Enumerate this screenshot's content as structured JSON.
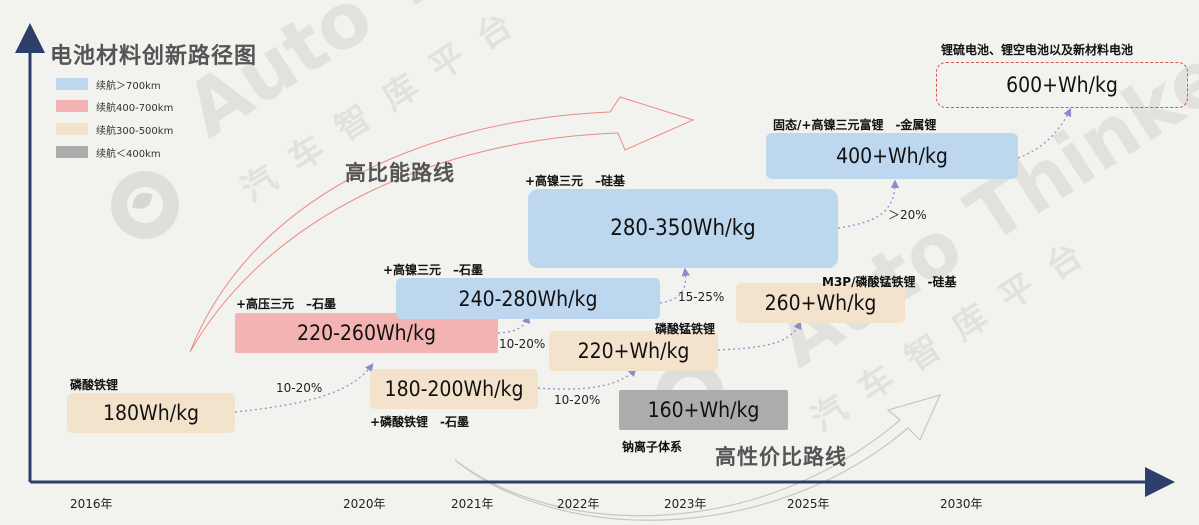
{
  "title": "电池材料创新路径图",
  "colors": {
    "blue": "#bdd7ee",
    "red": "#f4b3b3",
    "beige": "#f4e3cc",
    "gray": "#acacac",
    "axis": "#2e3e6a",
    "arrow": "#8c8cc8"
  },
  "legend": [
    {
      "label": "续航＞700km",
      "color": "#bdd7ee"
    },
    {
      "label": "续航400-700km",
      "color": "#f4b3b3"
    },
    {
      "label": "续航300-500km",
      "color": "#f4e3cc"
    },
    {
      "label": "续航＜400km",
      "color": "#acacac"
    }
  ],
  "years": [
    "2016年",
    "2020年",
    "2021年",
    "2022年",
    "2023年",
    "2025年",
    "2030年"
  ],
  "boxes": {
    "lfp_2016": {
      "value": "180Wh/kg",
      "label": "磷酸铁锂"
    },
    "ncm_2020": {
      "value": "220-260Wh/kg",
      "label": "+高压三元　–石墨"
    },
    "lfp_2021": {
      "value": "180-200Wh/kg",
      "label": "+磷酸铁锂　-石墨"
    },
    "nickel_2021": {
      "value": "240-280Wh/kg",
      "label": "+高镍三元　–石墨"
    },
    "lmfp_2022": {
      "value": "220+Wh/kg",
      "label": "磷酸锰铁锂"
    },
    "nickel_si_2022": {
      "value": "280-350Wh/kg",
      "label": "+高镍三元　–硅基"
    },
    "sodium_2023": {
      "value": "160+Wh/kg",
      "label": "钠离子体系"
    },
    "m3p_2025": {
      "value": "260+Wh/kg",
      "label": "M3P/磷酸锰铁锂　-硅基"
    },
    "solid_2025": {
      "value": "400+Wh/kg",
      "label": "固态/+高镍三元富锂　-金属锂"
    },
    "future_2030": {
      "value": "600+Wh/kg",
      "label": "锂硫电池、锂空电池以及新材料电池"
    }
  },
  "transitions": [
    "10-20%",
    "10-20%",
    "10-20%",
    "15-25%",
    "＞20%"
  ],
  "routes": {
    "high_energy": "高比能路线",
    "cost_effective": "高性价比路线"
  },
  "watermark": {
    "brand": "Auto Thinker",
    "platform": "汽车智库平台"
  }
}
